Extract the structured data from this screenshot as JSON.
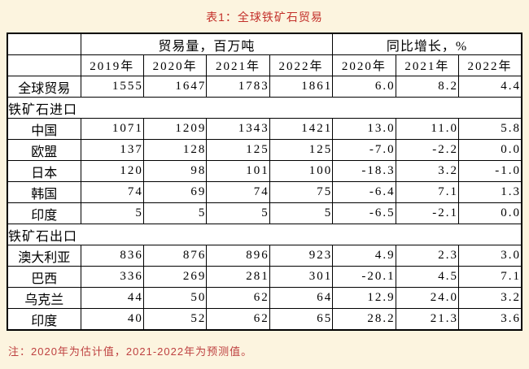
{
  "colors": {
    "page_background": "#FCF4DF",
    "table_background": "#FFFFFF",
    "border": "#000000",
    "title_red": "#C3302A",
    "note_red": "#BE4040"
  },
  "chart_data": {
    "type": "table",
    "title": "表1：全球铁矿石贸易",
    "note": "注：2020年为估计值，2021-2022年为预测值。",
    "column_groups": [
      {
        "label": "",
        "colspan": 1
      },
      {
        "label": "贸易量，百万吨",
        "colspan": 4
      },
      {
        "label": "同比增长，%",
        "colspan": 3
      }
    ],
    "corner_cell": "",
    "year_headers": [
      "2019年",
      "2020年",
      "2021年",
      "2022年",
      "2020年",
      "2021年",
      "2022年"
    ],
    "rows": [
      {
        "type": "data",
        "label": "全球贸易",
        "values": [
          "1555",
          "1647",
          "1783",
          "1861",
          "6.0",
          "8.2",
          "4.4"
        ]
      },
      {
        "type": "section",
        "label": "铁矿石进口"
      },
      {
        "type": "data",
        "label": "中国",
        "values": [
          "1071",
          "1209",
          "1343",
          "1421",
          "13.0",
          "11.0",
          "5.8"
        ]
      },
      {
        "type": "data",
        "label": "欧盟",
        "values": [
          "137",
          "128",
          "125",
          "125",
          "-7.0",
          "-2.2",
          "0.0"
        ]
      },
      {
        "type": "data",
        "label": "日本",
        "values": [
          "120",
          "98",
          "101",
          "100",
          "-18.3",
          "3.2",
          "-1.0"
        ]
      },
      {
        "type": "data",
        "label": "韩国",
        "values": [
          "74",
          "69",
          "74",
          "75",
          "-6.4",
          "7.1",
          "1.3"
        ]
      },
      {
        "type": "data",
        "label": "印度",
        "values": [
          "5",
          "5",
          "5",
          "5",
          "-6.5",
          "-2.1",
          "0.0"
        ]
      },
      {
        "type": "section",
        "label": "铁矿石出口"
      },
      {
        "type": "data",
        "label": "澳大利亚",
        "values": [
          "836",
          "876",
          "896",
          "923",
          "4.9",
          "2.3",
          "3.0"
        ]
      },
      {
        "type": "data",
        "label": "巴西",
        "values": [
          "336",
          "269",
          "281",
          "301",
          "-20.1",
          "4.5",
          "7.1"
        ]
      },
      {
        "type": "data",
        "label": "乌克兰",
        "values": [
          "44",
          "50",
          "62",
          "64",
          "12.9",
          "24.0",
          "3.2"
        ]
      },
      {
        "type": "data",
        "label": "印度",
        "values": [
          "40",
          "52",
          "62",
          "65",
          "28.2",
          "21.3",
          "3.6"
        ]
      }
    ]
  }
}
